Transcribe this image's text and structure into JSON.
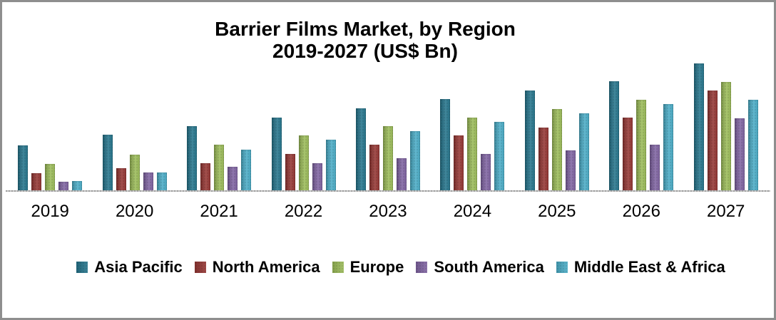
{
  "frame": {
    "background": "#FFFFFF",
    "border_color": "#8E8E8E"
  },
  "chart_data": {
    "type": "bar",
    "title": "Barrier Films Market, by Region",
    "subtitle": "2019-2027 (US$ Bn)",
    "categories": [
      "2019",
      "2020",
      "2021",
      "2022",
      "2023",
      "2024",
      "2025",
      "2026",
      "2027"
    ],
    "series": [
      {
        "name": "Asia Pacific",
        "color": "#26758C",
        "values": [
          6.4,
          7.9,
          9.1,
          10.3,
          11.6,
          12.9,
          14.1,
          15.4,
          17.9
        ]
      },
      {
        "name": "North America",
        "color": "#953734",
        "values": [
          2.5,
          3.2,
          3.9,
          5.2,
          6.5,
          7.8,
          8.9,
          10.3,
          14.1
        ]
      },
      {
        "name": "Europe",
        "color": "#9BBB59",
        "values": [
          3.8,
          5.1,
          6.5,
          7.8,
          9.1,
          10.3,
          11.5,
          12.8,
          15.3
        ]
      },
      {
        "name": "South America",
        "color": "#8064A2",
        "values": [
          1.3,
          2.6,
          3.4,
          3.9,
          4.6,
          5.2,
          5.7,
          6.5,
          10.2
        ]
      },
      {
        "name": "Middle East & Africa",
        "color": "#4BACC6",
        "values": [
          1.4,
          2.6,
          5.8,
          7.2,
          8.4,
          9.7,
          10.9,
          12.2,
          12.8
        ]
      }
    ],
    "xlabel": "",
    "ylabel": "",
    "ylim": [
      0,
      20
    ],
    "grid": false,
    "y_axis_visible": false,
    "axis_line_color": "#A6A6A6",
    "legend_position": "bottom"
  }
}
